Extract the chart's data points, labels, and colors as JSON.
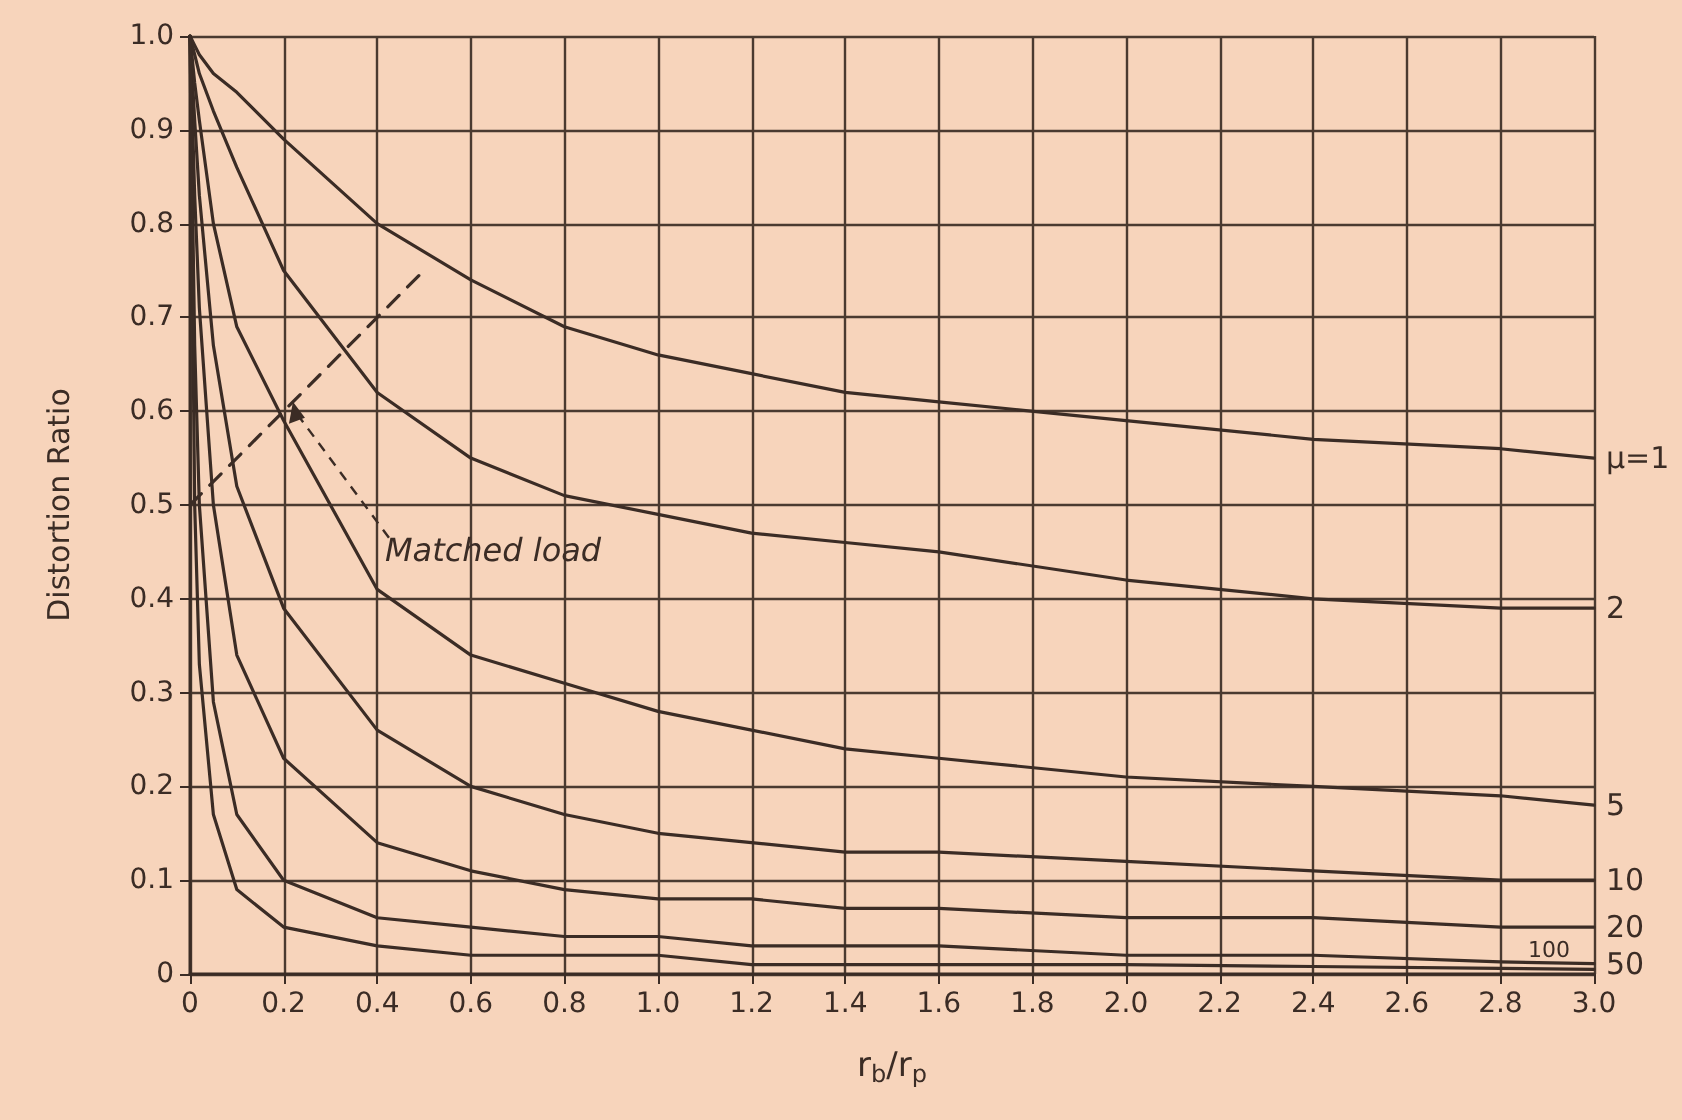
{
  "chart_data": {
    "type": "line",
    "xlabel": "r$_{b}$/r$_{p}$",
    "ylabel": "Distortion Ratio",
    "x": [
      0,
      0.01,
      0.02,
      0.05,
      0.1,
      0.2,
      0.4,
      0.6,
      0.8,
      1.0,
      1.2,
      1.4,
      1.6,
      2.0,
      2.4,
      2.8,
      3.0
    ],
    "series": [
      {
        "name": "μ=1",
        "color": "#3b2c25",
        "values": [
          1.0,
          0.99,
          0.98,
          0.96,
          0.94,
          0.89,
          0.8,
          0.74,
          0.69,
          0.66,
          0.64,
          0.62,
          0.61,
          0.59,
          0.57,
          0.56,
          0.55
        ]
      },
      {
        "name": "2",
        "color": "#3b2c25",
        "values": [
          1.0,
          0.98,
          0.96,
          0.92,
          0.86,
          0.75,
          0.62,
          0.55,
          0.51,
          0.49,
          0.47,
          0.46,
          0.45,
          0.42,
          0.4,
          0.39,
          0.39
        ]
      },
      {
        "name": "5",
        "color": "#3b2c25",
        "values": [
          1.0,
          0.95,
          0.91,
          0.8,
          0.69,
          0.59,
          0.41,
          0.34,
          0.31,
          0.28,
          0.26,
          0.24,
          0.23,
          0.21,
          0.2,
          0.19,
          0.18
        ]
      },
      {
        "name": "10",
        "color": "#3b2c25",
        "values": [
          1.0,
          0.91,
          0.83,
          0.67,
          0.52,
          0.39,
          0.26,
          0.2,
          0.17,
          0.15,
          0.14,
          0.13,
          0.13,
          0.12,
          0.11,
          0.1,
          0.1
        ]
      },
      {
        "name": "20",
        "color": "#3b2c25",
        "values": [
          1.0,
          0.83,
          0.71,
          0.5,
          0.34,
          0.23,
          0.14,
          0.11,
          0.09,
          0.08,
          0.08,
          0.07,
          0.07,
          0.06,
          0.06,
          0.05,
          0.05
        ]
      },
      {
        "name": "50",
        "color": "#3b2c25",
        "values": [
          1.0,
          0.67,
          0.5,
          0.29,
          0.17,
          0.1,
          0.06,
          0.05,
          0.04,
          0.04,
          0.03,
          0.03,
          0.03,
          0.02,
          0.02,
          0.013,
          0.011
        ]
      },
      {
        "name": "100",
        "color": "#3b2c25",
        "values": [
          1.0,
          0.5,
          0.33,
          0.17,
          0.09,
          0.05,
          0.03,
          0.02,
          0.02,
          0.02,
          0.01,
          0.01,
          0.01,
          0.01,
          0.008,
          0.006,
          0.005
        ]
      },
      {
        "type": "line",
        "color": "#3b2c25",
        "line_style": "dashed",
        "x": [
          0,
          0.5
        ],
        "values": [
          0.5,
          0.75
        ]
      }
    ],
    "annotations": [
      {
        "text": "Matched load",
        "x": 0.22,
        "y": 0.61
      }
    ],
    "xlim": [
      0,
      3.0
    ],
    "xticks": [
      0,
      {
        "value": 0.2,
        "label": "0.2"
      },
      {
        "value": 0.4,
        "label": "0.4"
      },
      {
        "value": 0.6,
        "label": "0.6"
      },
      {
        "value": 0.8,
        "label": "0.8"
      },
      {
        "value": 1,
        "label": "1.0"
      },
      {
        "value": 1.2,
        "label": "1.2"
      },
      {
        "value": 1.4,
        "label": "1.4"
      },
      {
        "value": 1.6,
        "label": "1.6"
      },
      {
        "value": 1.8,
        "label": "1.8"
      },
      {
        "value": 2,
        "label": "2.0"
      },
      {
        "value": 2.2,
        "label": "2.2"
      },
      {
        "value": 2.4,
        "label": "2.4"
      },
      {
        "value": 2.6,
        "label": "2.6"
      },
      {
        "value": 2.8,
        "label": "2.8"
      },
      {
        "value": 3,
        "label": "3.0"
      }
    ],
    "ylim": [
      0,
      1.0
    ],
    "yticks": [
      0,
      0.1,
      0.2,
      0.3,
      0.4,
      0.5,
      0.6,
      0.7,
      0.8,
      0.9,
      {
        "value": 1,
        "label": "1.0"
      }
    ],
    "grid": true,
    "marker": "none"
  }
}
